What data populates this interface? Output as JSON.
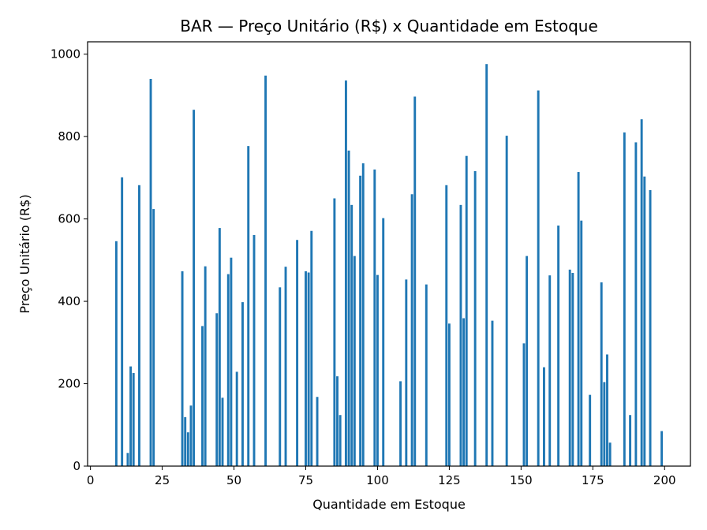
{
  "chart_data": {
    "type": "bar",
    "title": "BAR — Preço Unitário (R$) x Quantidade em Estoque",
    "xlabel": "Quantidade em Estoque",
    "ylabel": "Preço Unitário (R$)",
    "xlim": [
      -1,
      209
    ],
    "ylim": [
      0,
      1030
    ],
    "xticks": [
      0,
      25,
      50,
      75,
      100,
      125,
      150,
      175,
      200
    ],
    "yticks": [
      0,
      200,
      400,
      600,
      800,
      1000
    ],
    "grid": false,
    "bar_color": "#1f77b4",
    "bars": [
      {
        "x": 9,
        "y": 546
      },
      {
        "x": 11,
        "y": 701
      },
      {
        "x": 13,
        "y": 32
      },
      {
        "x": 14,
        "y": 242
      },
      {
        "x": 15,
        "y": 226
      },
      {
        "x": 17,
        "y": 682
      },
      {
        "x": 21,
        "y": 940
      },
      {
        "x": 22,
        "y": 624
      },
      {
        "x": 32,
        "y": 473
      },
      {
        "x": 33,
        "y": 119
      },
      {
        "x": 34,
        "y": 82
      },
      {
        "x": 35,
        "y": 147
      },
      {
        "x": 36,
        "y": 865
      },
      {
        "x": 39,
        "y": 340
      },
      {
        "x": 40,
        "y": 485
      },
      {
        "x": 44,
        "y": 371
      },
      {
        "x": 45,
        "y": 578
      },
      {
        "x": 46,
        "y": 166
      },
      {
        "x": 48,
        "y": 466
      },
      {
        "x": 49,
        "y": 506
      },
      {
        "x": 51,
        "y": 229
      },
      {
        "x": 53,
        "y": 398
      },
      {
        "x": 55,
        "y": 777
      },
      {
        "x": 57,
        "y": 561
      },
      {
        "x": 61,
        "y": 948
      },
      {
        "x": 66,
        "y": 434
      },
      {
        "x": 68,
        "y": 484
      },
      {
        "x": 72,
        "y": 549
      },
      {
        "x": 75,
        "y": 473
      },
      {
        "x": 76,
        "y": 470
      },
      {
        "x": 77,
        "y": 571
      },
      {
        "x": 79,
        "y": 168
      },
      {
        "x": 85,
        "y": 650
      },
      {
        "x": 86,
        "y": 218
      },
      {
        "x": 87,
        "y": 124
      },
      {
        "x": 89,
        "y": 936
      },
      {
        "x": 90,
        "y": 766
      },
      {
        "x": 91,
        "y": 634
      },
      {
        "x": 92,
        "y": 510
      },
      {
        "x": 94,
        "y": 705
      },
      {
        "x": 95,
        "y": 735
      },
      {
        "x": 99,
        "y": 720
      },
      {
        "x": 100,
        "y": 464
      },
      {
        "x": 102,
        "y": 602
      },
      {
        "x": 108,
        "y": 206
      },
      {
        "x": 110,
        "y": 453
      },
      {
        "x": 112,
        "y": 660
      },
      {
        "x": 113,
        "y": 897
      },
      {
        "x": 117,
        "y": 441
      },
      {
        "x": 124,
        "y": 682
      },
      {
        "x": 125,
        "y": 346
      },
      {
        "x": 129,
        "y": 634
      },
      {
        "x": 130,
        "y": 359
      },
      {
        "x": 131,
        "y": 753
      },
      {
        "x": 134,
        "y": 716
      },
      {
        "x": 138,
        "y": 976
      },
      {
        "x": 140,
        "y": 353
      },
      {
        "x": 145,
        "y": 802
      },
      {
        "x": 151,
        "y": 298
      },
      {
        "x": 152,
        "y": 510
      },
      {
        "x": 156,
        "y": 912
      },
      {
        "x": 158,
        "y": 240
      },
      {
        "x": 160,
        "y": 463
      },
      {
        "x": 163,
        "y": 584
      },
      {
        "x": 167,
        "y": 477
      },
      {
        "x": 168,
        "y": 469
      },
      {
        "x": 170,
        "y": 714
      },
      {
        "x": 171,
        "y": 596
      },
      {
        "x": 174,
        "y": 173
      },
      {
        "x": 178,
        "y": 446
      },
      {
        "x": 179,
        "y": 204
      },
      {
        "x": 180,
        "y": 271
      },
      {
        "x": 181,
        "y": 57
      },
      {
        "x": 186,
        "y": 810
      },
      {
        "x": 188,
        "y": 124
      },
      {
        "x": 190,
        "y": 786
      },
      {
        "x": 192,
        "y": 842
      },
      {
        "x": 193,
        "y": 703
      },
      {
        "x": 195,
        "y": 670
      },
      {
        "x": 199,
        "y": 85
      }
    ]
  }
}
